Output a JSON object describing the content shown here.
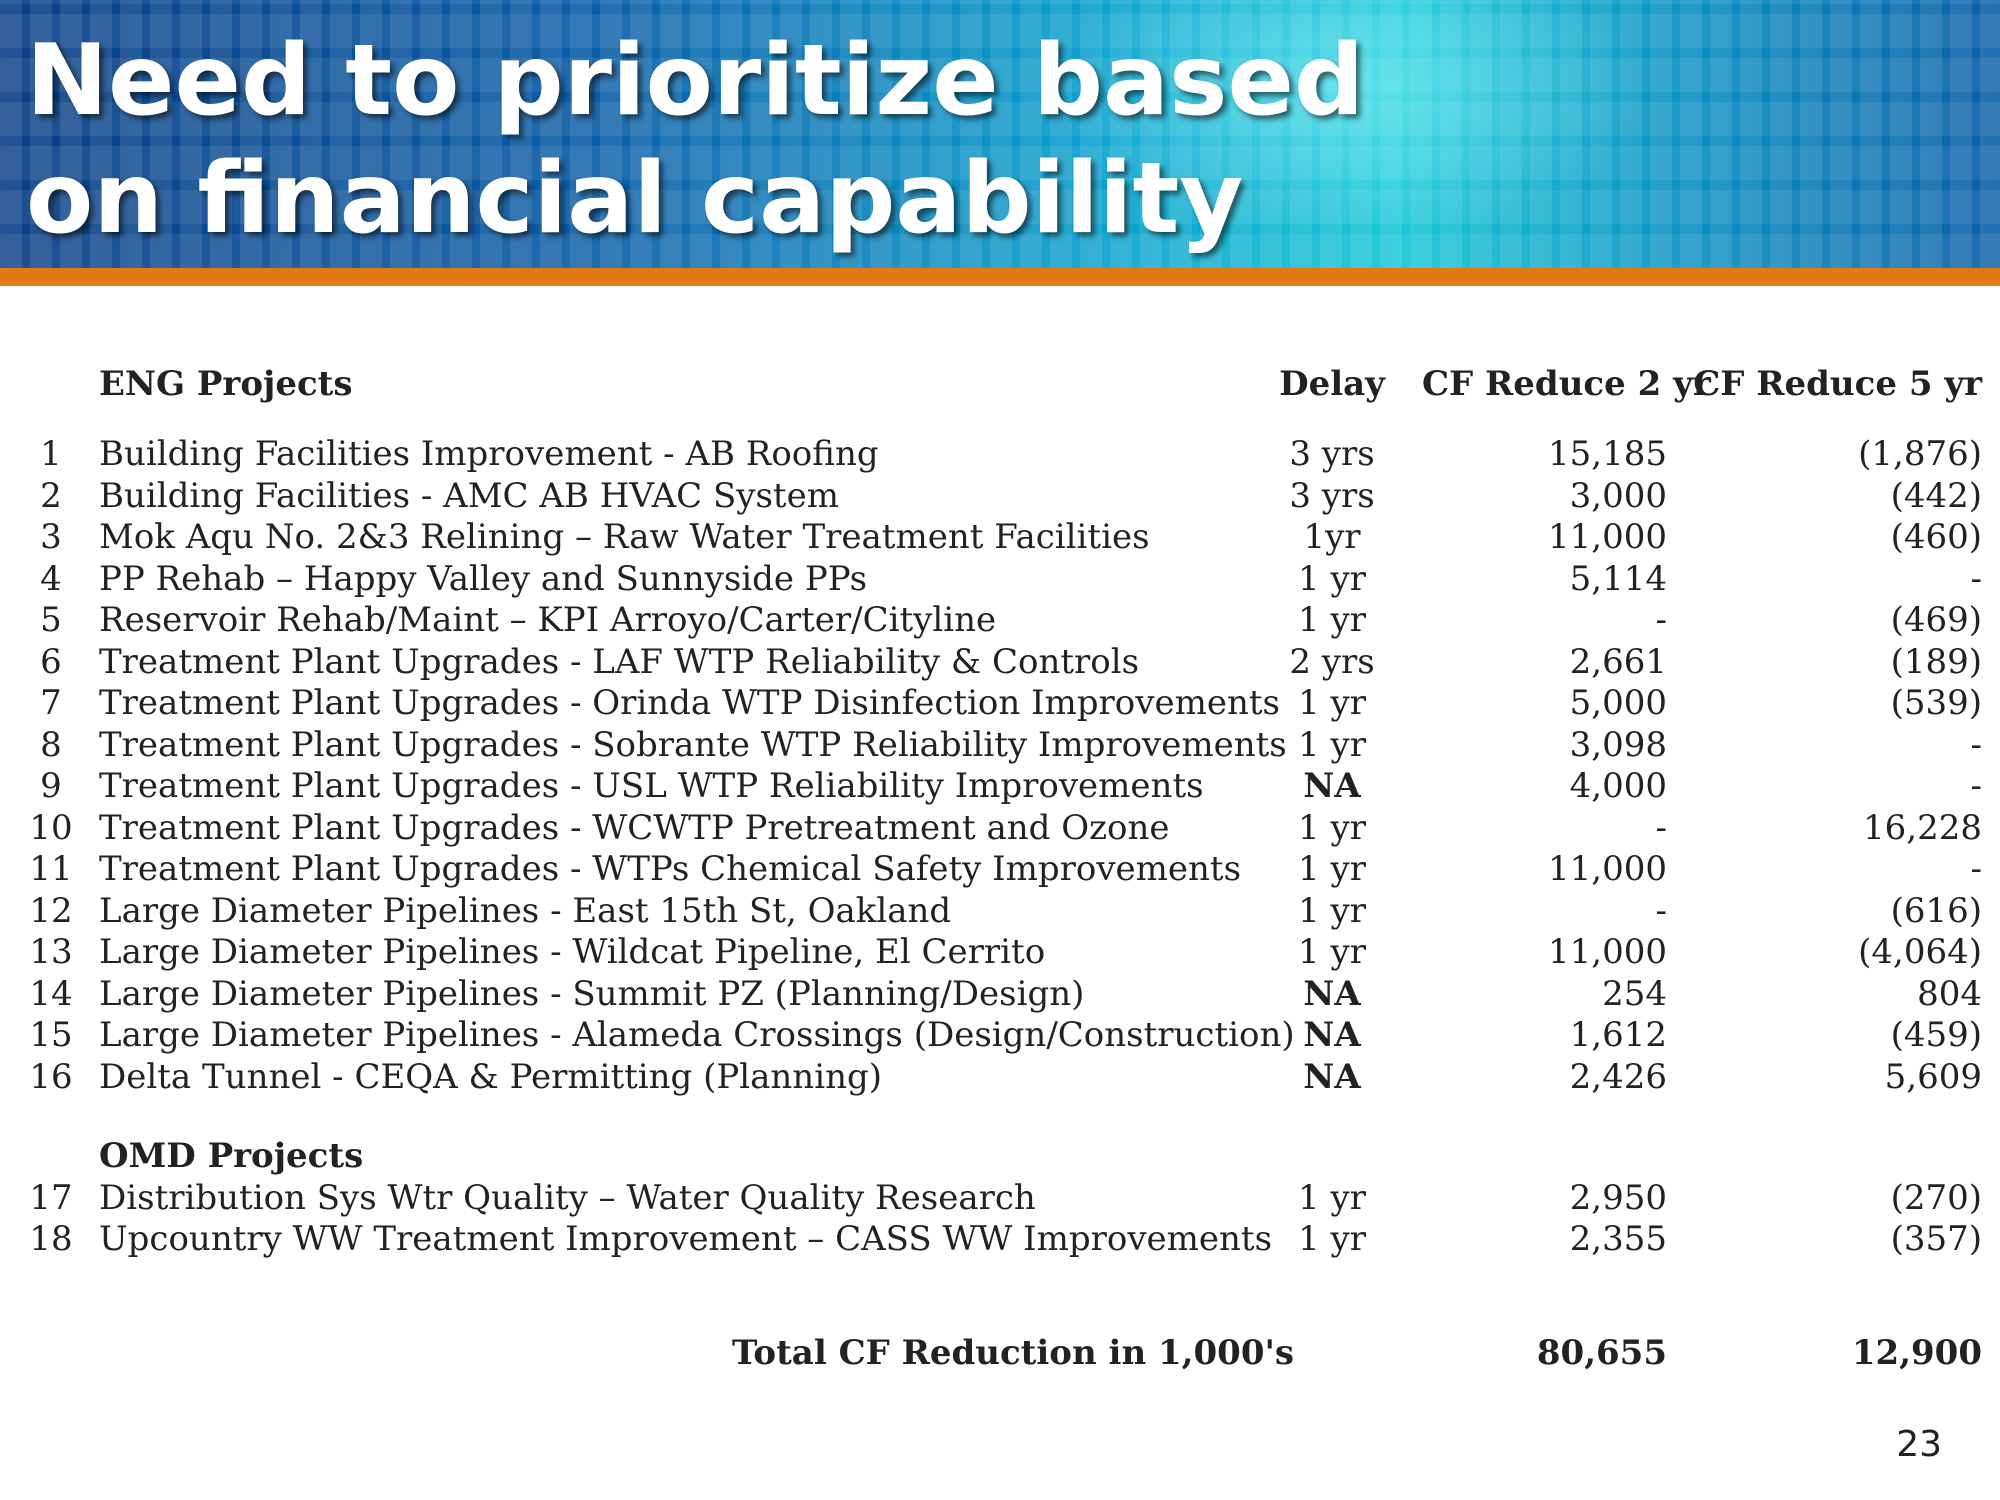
{
  "slide": {
    "title": "Need to prioritize based on financial capability",
    "page_number": "23"
  },
  "colors": {
    "banner_blue": "#0b5fa8",
    "banner_cyan": "#15c7d6",
    "accent_orange": "#e27a12",
    "text": "#222222"
  },
  "table": {
    "headers": {
      "eng_section": "ENG Projects",
      "delay": "Delay",
      "cf2": "CF Reduce 2 yr",
      "cf5": "CF Reduce 5 yr"
    },
    "eng_rows": [
      {
        "num": "1",
        "name": "Building Facilities Improvement - AB Roofing",
        "delay": "3 yrs",
        "cf2": "15,185",
        "cf5": "(1,876)"
      },
      {
        "num": "2",
        "name": "Building Facilities - AMC AB HVAC System",
        "delay": "3 yrs",
        "cf2": "3,000",
        "cf5": "(442)"
      },
      {
        "num": "3",
        "name": "Mok Aqu No. 2&3 Relining – Raw Water Treatment Facilities",
        "delay": "1yr",
        "cf2": "11,000",
        "cf5": "(460)"
      },
      {
        "num": "4",
        "name": "PP Rehab – Happy Valley and Sunnyside PPs",
        "delay": "1 yr",
        "cf2": "5,114",
        "cf5": "-"
      },
      {
        "num": "5",
        "name": "Reservoir Rehab/Maint – KPI Arroyo/Carter/Cityline",
        "delay": "1 yr",
        "cf2": "-",
        "cf5": "(469)"
      },
      {
        "num": "6",
        "name": "Treatment Plant Upgrades - LAF WTP Reliability & Controls",
        "delay": "2 yrs",
        "cf2": "2,661",
        "cf5": "(189)"
      },
      {
        "num": "7",
        "name": "Treatment Plant Upgrades - Orinda WTP Disinfection Improvements",
        "delay": "1 yr",
        "cf2": "5,000",
        "cf5": "(539)"
      },
      {
        "num": "8",
        "name": "Treatment Plant Upgrades - Sobrante WTP Reliability Improvements",
        "delay": "1 yr",
        "cf2": "3,098",
        "cf5": "-"
      },
      {
        "num": "9",
        "name": "Treatment Plant Upgrades - USL WTP Reliability Improvements",
        "delay": "NA",
        "cf2": "4,000",
        "cf5": "-"
      },
      {
        "num": "10",
        "name": "Treatment Plant Upgrades - WCWTP Pretreatment and Ozone",
        "delay": "1 yr",
        "cf2": "-",
        "cf5": "16,228"
      },
      {
        "num": "11",
        "name": "Treatment Plant Upgrades - WTPs Chemical Safety Improvements",
        "delay": "1 yr",
        "cf2": "11,000",
        "cf5": "-"
      },
      {
        "num": "12",
        "name": "Large Diameter Pipelines - East 15th St, Oakland",
        "delay": "1 yr",
        "cf2": "-",
        "cf5": "(616)"
      },
      {
        "num": "13",
        "name": "Large Diameter Pipelines - Wildcat Pipeline, El Cerrito",
        "delay": "1 yr",
        "cf2": "11,000",
        "cf5": "(4,064)"
      },
      {
        "num": "14",
        "name": "Large Diameter Pipelines - Summit PZ (Planning/Design)",
        "delay": "NA",
        "cf2": "254",
        "cf5": "804"
      },
      {
        "num": "15",
        "name": "Large Diameter Pipelines - Alameda Crossings (Design/Construction)",
        "delay": "NA",
        "cf2": "1,612",
        "cf5": "(459)"
      },
      {
        "num": "16",
        "name": "Delta Tunnel - CEQA & Permitting (Planning)",
        "delay": "NA",
        "cf2": "2,426",
        "cf5": "5,609"
      }
    ],
    "omd_section": "OMD Projects",
    "omd_rows": [
      {
        "num": "17",
        "name": "Distribution Sys Wtr Quality – Water Quality Research",
        "delay": "1 yr",
        "cf2": "2,950",
        "cf5": "(270)"
      },
      {
        "num": "18",
        "name": "Upcountry WW Treatment Improvement – CASS WW Improvements",
        "delay": "1 yr",
        "cf2": "2,355",
        "cf5": "(357)"
      }
    ],
    "total": {
      "label": "Total CF Reduction in 1,000's",
      "cf2": "80,655",
      "cf5": "12,900"
    }
  }
}
